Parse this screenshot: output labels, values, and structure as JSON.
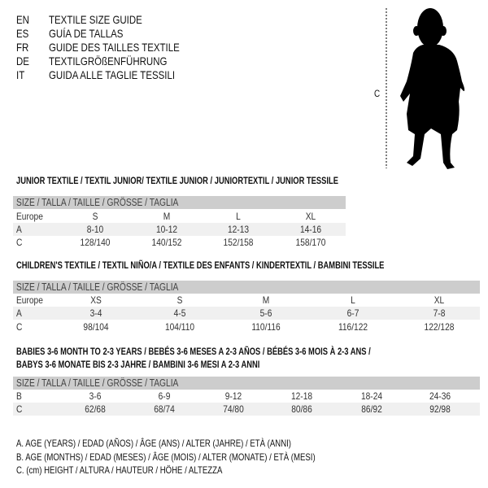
{
  "languages": [
    {
      "code": "EN",
      "label": "TEXTILE SIZE GUIDE"
    },
    {
      "code": "ES",
      "label": "GUÍA DE TALLAS"
    },
    {
      "code": "FR",
      "label": "GUIDE DES TAILLES TEXTILE"
    },
    {
      "code": "DE",
      "label": "TEXTILGRÖßENFÜHRUNG"
    },
    {
      "code": "IT",
      "label": "GUIDA ALLE TAGLIE TESSILI"
    }
  ],
  "figure": {
    "height_label": "C",
    "icon": "baby-silhouette"
  },
  "tables": [
    {
      "title": "JUNIOR TEXTILE / TEXTIL JUNIOR/ TEXTILE JUNIOR / JUNIORTEXTIL / JUNIOR TESSILE",
      "header": "SIZE / TALLA / TAILLE / GRÖSSE / TAGLIA",
      "rows": [
        {
          "label": "Europe",
          "values": [
            "S",
            "M",
            "L",
            "XL"
          ]
        },
        {
          "label": "A",
          "values": [
            "8-10",
            "10-12",
            "12-13",
            "14-16"
          ]
        },
        {
          "label": "C",
          "values": [
            "128/140",
            "140/152",
            "152/158",
            "158/170"
          ]
        }
      ]
    },
    {
      "title": "CHILDREN'S TEXTILE / TEXTIL NIÑO/A / TEXTILE DES ENFANTS / KINDERTEXTIL / BAMBINI TESSILE",
      "header": "SIZE / TALLA / TAILLE / GRÖSSE / TAGLIA",
      "rows": [
        {
          "label": "Europe",
          "values": [
            "XS",
            "S",
            "M",
            "L",
            "XL"
          ]
        },
        {
          "label": "A",
          "values": [
            "3-4",
            "4-5",
            "5-6",
            "6-7",
            "7-8"
          ]
        },
        {
          "label": "C",
          "values": [
            "98/104",
            "104/110",
            "110/116",
            "116/122",
            "122/128"
          ]
        }
      ]
    },
    {
      "title": "BABIES 3-6 MONTH TO 2-3 YEARS / BEBÉS 3-6 MESES A 2-3 AÑOS / BÉBÉS 3-6 MOIS À 2-3 ANS /",
      "title2": "BABYS 3-6 MONATE BIS 2-3 JAHRE / BAMBINI 3-6 MESI A 2-3 ANNI",
      "header": "SIZE / TALLA / TAILLE / GRÖSSE / TAGLIA",
      "rows": [
        {
          "label": "B",
          "values": [
            "3-6",
            "6-9",
            "9-12",
            "12-18",
            "18-24",
            "24-36"
          ]
        },
        {
          "label": "C",
          "values": [
            "62/68",
            "68/74",
            "74/80",
            "80/86",
            "86/92",
            "92/98"
          ]
        }
      ]
    }
  ],
  "legend": [
    "A. AGE (YEARS) / EDAD (AÑOS) / ÂGE (ANS) / ALTER (JAHRE) / ETÀ (ANNI)",
    "B. AGE (MONTHS) / EDAD (MESES) / ÂGE (MOIS) / ALTER (MONATE) / ETÀ (MESI)",
    "C. (cm) HEIGHT / ALTURA / HAUTEUR / HÖHE / ALTEZZA"
  ]
}
